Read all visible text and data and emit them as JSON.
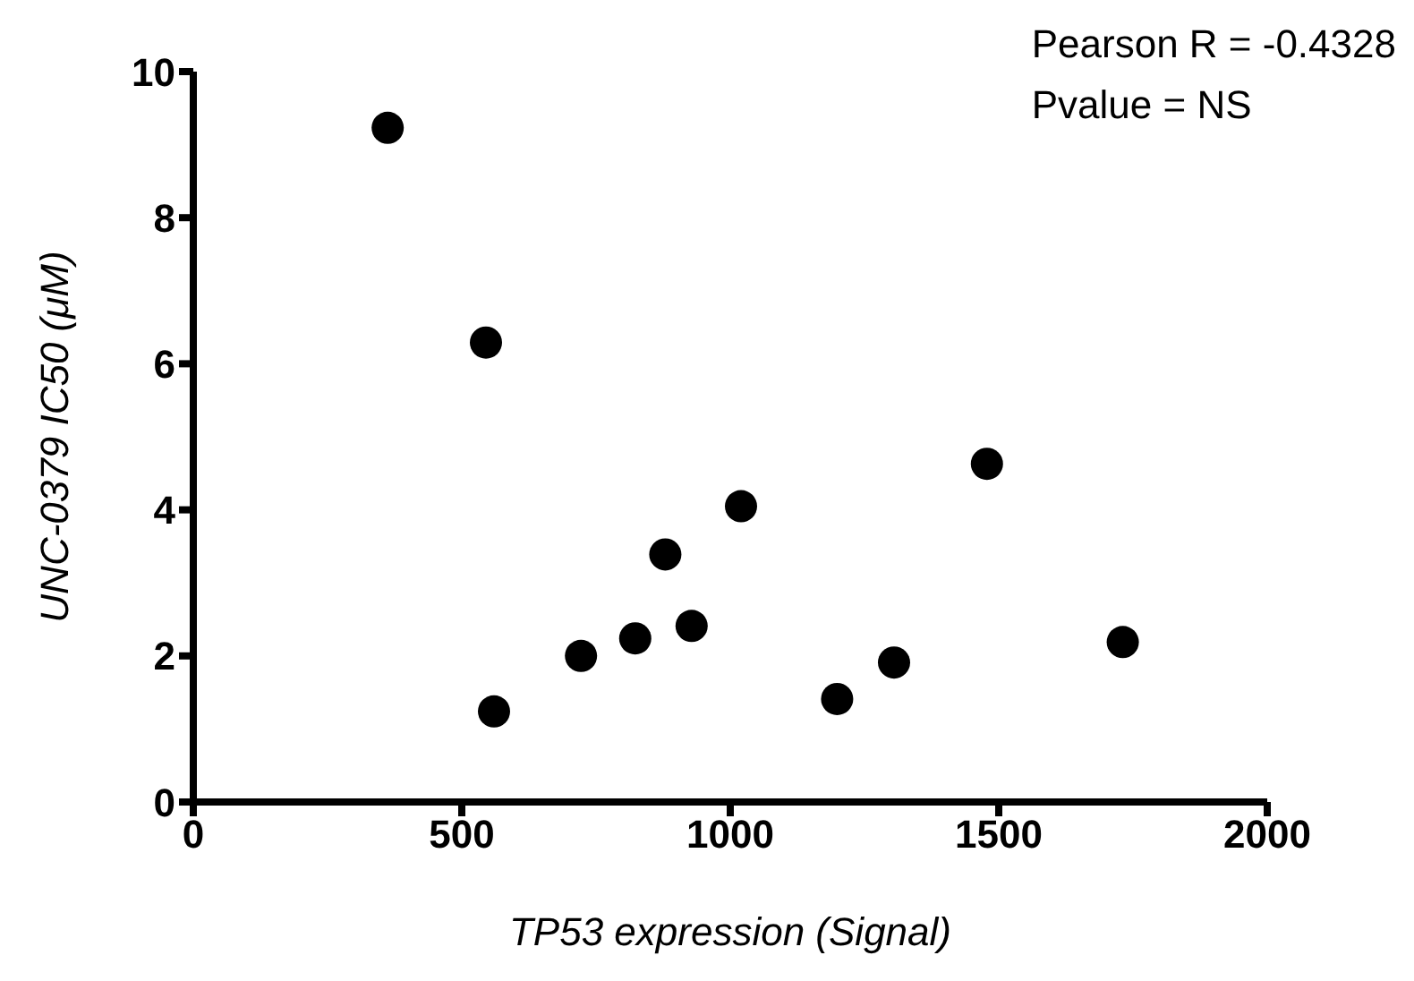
{
  "chart_data": {
    "type": "scatter",
    "xlabel": "TP53 expression (Signal)",
    "ylabel": "UNC-0379 IC50 (μM)",
    "annotations": [
      "Pearson R = -0.4328",
      "Pvalue = NS"
    ],
    "x": [
      362,
      545,
      560,
      722,
      823,
      879,
      928,
      1020,
      1199,
      1305,
      1478,
      1731
    ],
    "series": [
      {
        "color": "#000000",
        "values": [
          9.23,
          6.29,
          1.24,
          2.0,
          2.24,
          3.39,
          2.41,
          4.05,
          1.41,
          1.91,
          4.63,
          2.19
        ]
      }
    ],
    "xlim": [
      0,
      2000
    ],
    "xticks": [
      0,
      500,
      1000,
      1500,
      2000
    ],
    "ylim": [
      0,
      10
    ],
    "yticks": [
      0,
      2,
      4,
      6,
      8,
      10
    ],
    "grid": false,
    "marker": "circle"
  }
}
